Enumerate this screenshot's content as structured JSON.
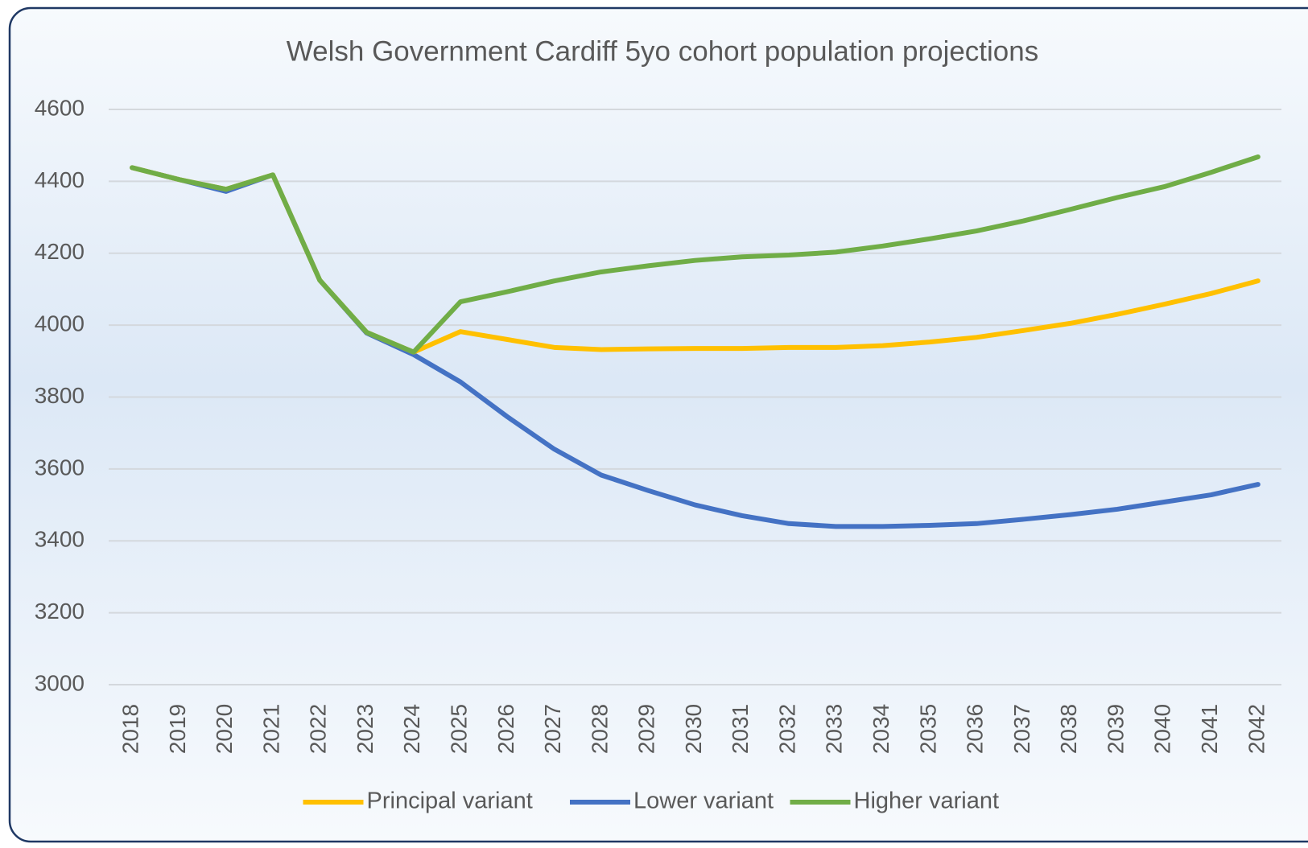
{
  "chart_data": {
    "type": "line",
    "title": "Welsh Government Cardiff 5yo cohort population projections",
    "categories": [
      "2018",
      "2019",
      "2020",
      "2021",
      "2022",
      "2023",
      "2024",
      "2025",
      "2026",
      "2027",
      "2028",
      "2029",
      "2030",
      "2031",
      "2032",
      "2033",
      "2034",
      "2035",
      "2036",
      "2037",
      "2038",
      "2039",
      "2040",
      "2041",
      "2042"
    ],
    "series": [
      {
        "name": "Principal variant",
        "color": "#ffc000",
        "values": [
          4438,
          4405,
          4378,
          4418,
          4125,
          3980,
          3925,
          3982,
          3960,
          3938,
          3932,
          3934,
          3935,
          3935,
          3938,
          3938,
          3943,
          3953,
          3966,
          3985,
          4005,
          4030,
          4058,
          4088,
          4123
        ]
      },
      {
        "name": "Lower variant",
        "color": "#4472c4",
        "values": [
          4438,
          4405,
          4372,
          4418,
          4125,
          3978,
          3918,
          3842,
          3745,
          3655,
          3583,
          3540,
          3500,
          3470,
          3448,
          3440,
          3440,
          3443,
          3448,
          3460,
          3473,
          3488,
          3508,
          3528,
          3557
        ]
      },
      {
        "name": "Higher variant",
        "color": "#70ad47",
        "values": [
          4438,
          4405,
          4378,
          4418,
          4125,
          3980,
          3925,
          4065,
          4093,
          4123,
          4148,
          4165,
          4180,
          4190,
          4195,
          4203,
          4220,
          4240,
          4262,
          4290,
          4322,
          4355,
          4385,
          4425,
          4468
        ]
      }
    ],
    "ylim": [
      3000,
      4600
    ],
    "yticks": [
      3000,
      3200,
      3400,
      3600,
      3800,
      4000,
      4200,
      4400,
      4600
    ],
    "grid": true,
    "legend": "bottom"
  }
}
